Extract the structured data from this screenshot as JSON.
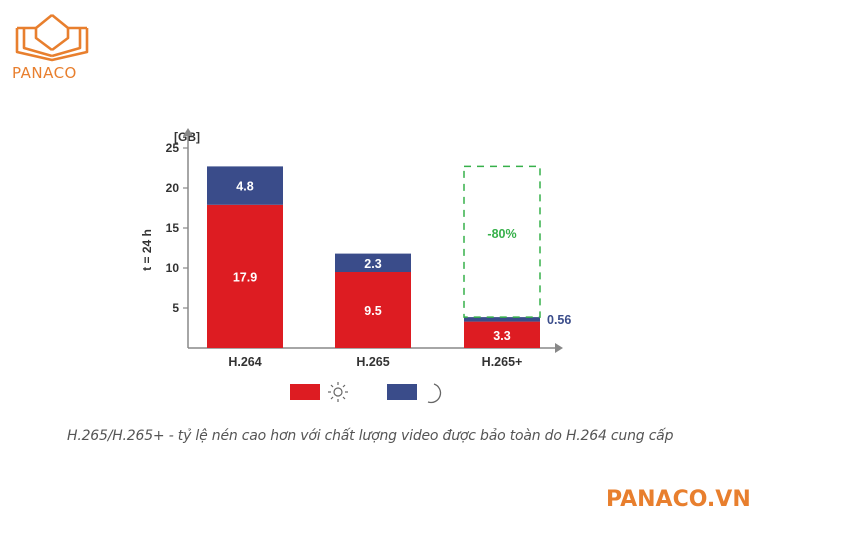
{
  "brand": {
    "name": "PANACO",
    "color": "#e87f2e"
  },
  "logo_icon": "open-book-house-icon",
  "caption": "H.265/H.265+ - tỷ lệ nén cao hơn với chất lượng video được bảo toàn do H.264 cung cấp",
  "website": "PANACO.VN",
  "chart_data": {
    "type": "bar",
    "stacked": true,
    "categories": [
      "H.264",
      "H.265",
      "H.265+"
    ],
    "series": [
      {
        "values": [
          17.9,
          9.5,
          3.3
        ],
        "color": "#dd1c22",
        "legend_icon": "sun-icon"
      },
      {
        "values": [
          4.8,
          2.3,
          0.56
        ],
        "color": "#3a4c8a",
        "legend_icon": "moon-icon"
      }
    ],
    "data_labels": [
      [
        "17.9",
        "9.5",
        "3.3"
      ],
      [
        "4.8",
        "2.3",
        "0.56"
      ]
    ],
    "y_unit": "[GB]",
    "ylabel": "t = 24 h",
    "yticks": [
      5,
      10,
      15,
      20,
      25
    ],
    "ylim": [
      0,
      26.5
    ],
    "grid": false,
    "legend_position": "bottom",
    "annotation": {
      "text": "-80%",
      "color": "#36b04a",
      "category": "H.265+",
      "top_value": 22.7
    }
  }
}
